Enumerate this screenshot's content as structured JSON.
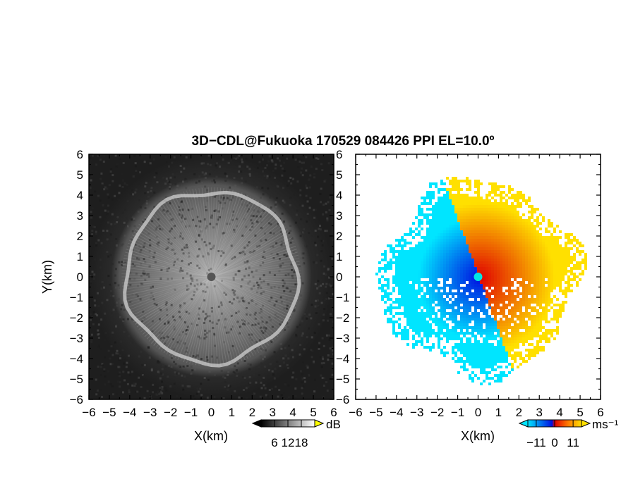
{
  "title": "3D−CDL@Fukuoka 170529 084426 PPI EL=10.0º",
  "chart_data": [
    {
      "type": "heatmap",
      "panel": "left",
      "field": "backscatter",
      "xlabel": "X(km)",
      "ylabel": "Y(km)",
      "xlim": [
        -6,
        6
      ],
      "ylim": [
        -6,
        6
      ],
      "xticks": [
        "−6",
        "−5",
        "−4",
        "−3",
        "−2",
        "−1",
        "0",
        "1",
        "2",
        "3",
        "4",
        "5",
        "6"
      ],
      "yticks": [
        "−6",
        "−5",
        "−4",
        "−3",
        "−2",
        "−1",
        "0",
        "1",
        "2",
        "3",
        "4",
        "5",
        "6"
      ],
      "colorscale": "grayscale",
      "colorbar": {
        "unit": "dB",
        "range": [
          0,
          24
        ],
        "ticks": [
          6,
          12,
          18
        ],
        "tick_labels": [
          "6",
          "12",
          "18"
        ]
      },
      "features": {
        "ring_radius_km": 4.2,
        "center_dot_km": [
          0,
          0
        ]
      }
    },
    {
      "type": "heatmap",
      "panel": "right",
      "field": "doppler_velocity",
      "xlabel": "X(km)",
      "xlim": [
        -6,
        6
      ],
      "ylim": [
        -6,
        6
      ],
      "xticks": [
        "−6",
        "−5",
        "−4",
        "−3",
        "−2",
        "−1",
        "0",
        "1",
        "2",
        "3",
        "4",
        "5",
        "6"
      ],
      "yticks": [
        "6",
        "5",
        "4",
        "3",
        "2",
        "1",
        "0",
        "−1",
        "−2",
        "−3",
        "−4",
        "−5",
        "−6"
      ],
      "colorscale": "blue-red-yellow",
      "colorbar": {
        "unit": "ms⁻¹",
        "range": [
          -16,
          16
        ],
        "ticks": [
          -11,
          0,
          11
        ],
        "tick_labels": [
          "−11",
          "0",
          "11"
        ]
      },
      "features": {
        "data_radius_km": 4.8
      },
      "colors": {
        "negative_far": "#00e5ff",
        "negative_near": "#0010e0",
        "positive_near": "#e00000",
        "positive_far": "#ffe000"
      }
    }
  ]
}
